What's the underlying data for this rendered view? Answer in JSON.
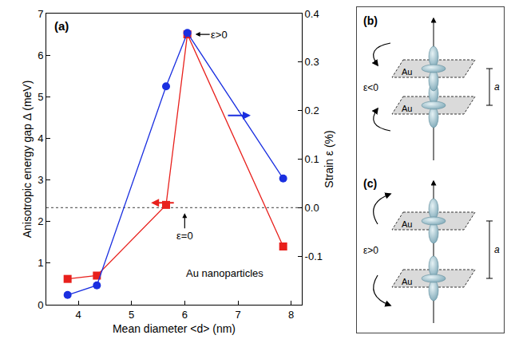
{
  "chart_data": {
    "type": "scatter",
    "panel_label": "(a)",
    "x_label": "Mean diameter <d> (nm)",
    "y_label": "Anisotropic energy gap Δ (meV)",
    "y2_label": "Strain ε (%)",
    "x": [
      3.8,
      4.35,
      5.65,
      6.05,
      7.85
    ],
    "series": [
      {
        "color": "#e8201c",
        "marker": "square",
        "line_style": "solid",
        "axis": "y",
        "values": [
          0.62,
          0.7,
          2.4,
          6.5,
          1.4
        ]
      },
      {
        "color": "#1a2fe0",
        "marker": "circle",
        "line_style": "solid",
        "axis": "y2",
        "values": [
          -0.18,
          -0.16,
          0.25,
          0.36,
          0.06
        ]
      }
    ],
    "xlim": [
      3.4,
      8.2
    ],
    "xticks": [
      4,
      5,
      6,
      7,
      8
    ],
    "ylim": [
      0,
      7
    ],
    "yticks": [
      0,
      1,
      2,
      3,
      4,
      5,
      6,
      7
    ],
    "y2lim": [
      -0.2,
      0.4
    ],
    "y2ticks": [
      -0.1,
      {
        "value": 0,
        "label": "0.0"
      },
      0.1,
      0.2,
      0.3,
      0.4
    ],
    "hlines": [
      {
        "axis": "y2",
        "value": 0,
        "line_style": "dot"
      }
    ],
    "annotations": [
      {
        "text": "ε>0",
        "x": 6.2,
        "y": 6.5,
        "arrow": "left"
      },
      {
        "text": "ε=0",
        "x": 6.0,
        "y": 2.2,
        "arrow": "up"
      },
      {
        "text": "Au nanoparticles",
        "x": 6.75,
        "y": 0.75,
        "arrow": "none"
      }
    ],
    "grid": false
  },
  "panels": [
    {
      "label": "(b)",
      "strain": "ε<0",
      "layer": "Au",
      "spacing": "a"
    },
    {
      "label": "(c)",
      "strain": "ε>0",
      "layer": "Au",
      "spacing": "a"
    }
  ]
}
